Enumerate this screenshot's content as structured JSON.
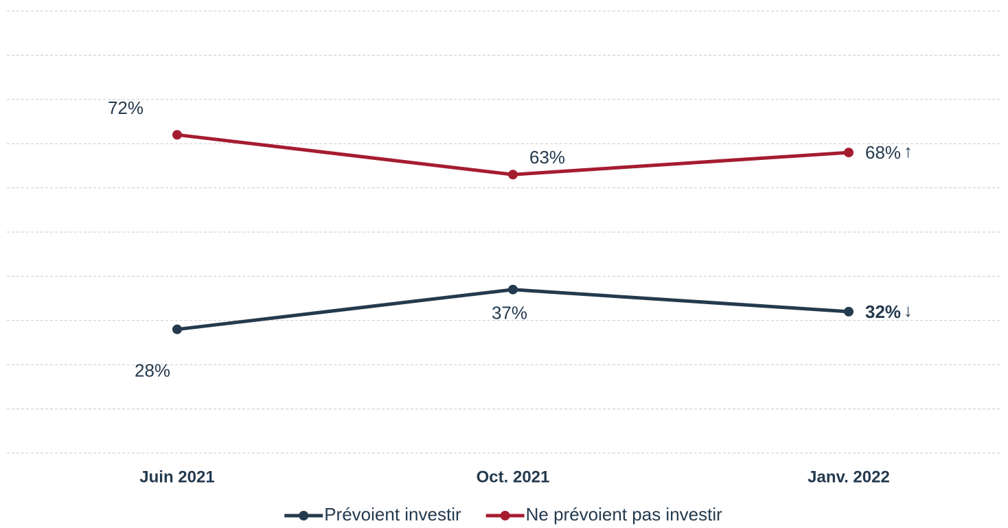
{
  "chart_data": {
    "type": "line",
    "categories": [
      "Juin 2021",
      "Oct. 2021",
      "Janv. 2022"
    ],
    "series": [
      {
        "name": "Prévoient investir",
        "color": "#243a4e",
        "values": [
          28,
          37,
          32
        ],
        "value_labels": [
          "28%",
          "37%",
          "32%"
        ],
        "trend_label": "↓"
      },
      {
        "name": "Ne prévoient pas investir",
        "color": "#a51c30",
        "values": [
          72,
          63,
          68
        ],
        "value_labels": [
          "72%",
          "63%",
          "68%"
        ],
        "trend_label": "↑"
      }
    ],
    "ylim": [
      0,
      100
    ],
    "yticks": [
      0,
      10,
      20,
      30,
      40,
      50,
      60,
      70,
      80,
      90,
      100
    ],
    "grid": true,
    "legend": "bottom"
  }
}
